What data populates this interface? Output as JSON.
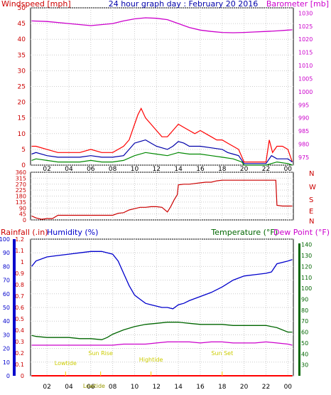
{
  "chart_data": [
    {
      "type": "line",
      "panel": "top",
      "title": "24 hour graph day : February 20 2016",
      "left_label": "Windspeed [mph]",
      "right_label": "Barometer [mb]",
      "left_ticks": [
        "0",
        "5",
        "10",
        "15",
        "20",
        "25",
        "30",
        "35",
        "40",
        "45",
        "50"
      ],
      "right_ticks": [
        "975",
        "980",
        "985",
        "990",
        "995",
        "1000",
        "1005",
        "1010",
        "1015",
        "1020",
        "1025",
        "1030"
      ],
      "x_ticks": [
        "02",
        "04",
        "06",
        "08",
        "10",
        "12",
        "14",
        "16",
        "18",
        "20",
        "22",
        "00"
      ],
      "x_range_hours": [
        0.5,
        24.5
      ],
      "ylim_left": [
        0,
        50
      ],
      "ylim_right": [
        972,
        1032
      ],
      "grid": true,
      "series": [
        {
          "name": "Windspeed",
          "role": "gust",
          "color": "#ff0000",
          "axis": "left",
          "x": [
            0.6,
            1,
            2,
            3,
            4,
            5,
            6,
            7,
            8,
            9,
            9.5,
            10,
            10.3,
            10.6,
            11,
            11.5,
            12,
            12.5,
            13,
            13.5,
            14,
            14.5,
            15,
            15.5,
            16,
            16.5,
            17,
            17.5,
            18,
            18.5,
            19,
            19.5,
            20,
            21,
            22,
            22.3,
            22.6,
            23,
            23.5,
            24,
            24.4
          ],
          "y": [
            6,
            6,
            5,
            4,
            4,
            4,
            5,
            4,
            4,
            6,
            8,
            13,
            16,
            18,
            15,
            13,
            11,
            9,
            9,
            11,
            13,
            12,
            11,
            10,
            11,
            10,
            9,
            8,
            8,
            7,
            6,
            5,
            1,
            1,
            1,
            8,
            4,
            6,
            6,
            5,
            1
          ]
        },
        {
          "name": "Windspeed",
          "role": "average",
          "color": "#0000aa",
          "axis": "left",
          "x": [
            0.6,
            1,
            2,
            3,
            4,
            5,
            6,
            7,
            8,
            9,
            9.5,
            10,
            10.5,
            11,
            11.5,
            12,
            12.5,
            13,
            13.5,
            14,
            14.5,
            15,
            16,
            17,
            18,
            18.5,
            19,
            19.5,
            20,
            21,
            22,
            22.5,
            23,
            24,
            24.4
          ],
          "y": [
            3.5,
            4,
            3,
            2.5,
            2.5,
            2.5,
            3,
            2.5,
            2.5,
            3,
            5,
            7,
            7.5,
            8,
            7,
            6,
            5.5,
            5,
            6,
            7.5,
            7,
            6,
            6,
            5.5,
            5,
            4,
            3.5,
            3,
            0.5,
            0.5,
            0.5,
            3,
            2,
            2,
            1
          ]
        },
        {
          "name": "Windspeed",
          "role": "minimum",
          "color": "#008800",
          "axis": "left",
          "x": [
            0.6,
            1,
            2,
            3,
            4,
            5,
            6,
            7,
            8,
            9,
            10,
            11,
            12,
            13,
            14,
            15,
            16,
            17,
            18,
            19,
            19.8,
            20,
            21,
            22,
            23,
            24,
            24.4
          ],
          "y": [
            1.5,
            2,
            1.5,
            1,
            1,
            1,
            1.5,
            1,
            1,
            1.5,
            3,
            4,
            3.5,
            3,
            4,
            3.5,
            3.5,
            3,
            2.5,
            2,
            1,
            0,
            0,
            0,
            1,
            0.5,
            0
          ]
        },
        {
          "name": "Barometer",
          "color": "#cc00cc",
          "axis": "right",
          "x": [
            0.6,
            2,
            4,
            6,
            8,
            9,
            10,
            11,
            12,
            13,
            14,
            15,
            16,
            17,
            18,
            19,
            20,
            21,
            22,
            23,
            24,
            24.4
          ],
          "y": [
            1027,
            1026.8,
            1026,
            1025.2,
            1026,
            1027,
            1027.8,
            1028.2,
            1028,
            1027.5,
            1026,
            1024.5,
            1023.5,
            1023,
            1022.6,
            1022.5,
            1022.6,
            1022.8,
            1023,
            1023.2,
            1023.5,
            1023.6
          ]
        }
      ]
    },
    {
      "type": "line",
      "panel": "middle",
      "left_ticks": [
        "0",
        "45",
        "90",
        "135",
        "180",
        "225",
        "270",
        "315",
        "360"
      ],
      "right_labels": [
        "N",
        "W",
        "S",
        "E",
        "N"
      ],
      "x_ticks": [
        "02",
        "04",
        "06",
        "08",
        "10",
        "12",
        "14",
        "16",
        "18",
        "20",
        "22",
        "00"
      ],
      "ylim": [
        0,
        360
      ],
      "grid": true,
      "series": [
        {
          "name": "Wind direction",
          "color": "#cc0000",
          "x": [
            0.6,
            1,
            1.5,
            2,
            2.5,
            3,
            4,
            5,
            6,
            7,
            8,
            8.5,
            9,
            9.5,
            10,
            10.5,
            11,
            11.5,
            12,
            12.5,
            13,
            13.3,
            13.6,
            13.9,
            14,
            14.5,
            15,
            15.5,
            16,
            16.5,
            17,
            17.5,
            18,
            19,
            20,
            21,
            22,
            22.5,
            22.9,
            23,
            23.5,
            24,
            24.4
          ],
          "y": [
            30,
            15,
            5,
            10,
            10,
            35,
            35,
            35,
            35,
            35,
            35,
            50,
            55,
            75,
            85,
            95,
            95,
            100,
            100,
            95,
            60,
            100,
            150,
            190,
            265,
            270,
            270,
            275,
            280,
            285,
            285,
            295,
            300,
            300,
            300,
            300,
            300,
            300,
            300,
            110,
            105,
            105,
            105
          ]
        }
      ]
    },
    {
      "type": "line",
      "panel": "bottom",
      "labels": {
        "rainfall": "Rainfall (.in)",
        "humidity": "Humidity (%)",
        "temperature": "Temperature (°F)",
        "dewpoint": "Dew Point (°F)"
      },
      "left_ticks_rain": [
        "0",
        "0.1",
        "0.2",
        "0.3",
        "0.4",
        "0.5",
        "0.6",
        "0.7",
        "0.8",
        "0.9",
        "1",
        "1.1",
        "1.2"
      ],
      "left_ticks_humidity": [
        "0",
        "10",
        "20",
        "30",
        "40",
        "50",
        "60",
        "70",
        "80",
        "90",
        "100"
      ],
      "right_ticks": [
        "30",
        "40",
        "50",
        "60",
        "70",
        "80",
        "90",
        "100",
        "110",
        "120",
        "130",
        "140"
      ],
      "x_ticks": [
        "02",
        "04",
        "06",
        "08",
        "10",
        "12",
        "14",
        "16",
        "18",
        "20",
        "22",
        "00"
      ],
      "ylim_humidity": [
        0,
        100
      ],
      "ylim_temperature": [
        20,
        145
      ],
      "grid": true,
      "annotations": [
        {
          "text": "Lowtide",
          "hour": 3.7
        },
        {
          "text": "Sun Rise",
          "hour": 6.9
        },
        {
          "text": "Hightide",
          "hour": 11.5
        },
        {
          "text": "Sun Set",
          "hour": 18.0
        },
        {
          "text": "Lowtide",
          "hour": 6.3
        }
      ],
      "series": [
        {
          "name": "Humidity",
          "color": "#0000cc",
          "axis": "humidity",
          "x": [
            0.6,
            1,
            2,
            3,
            4,
            5,
            6,
            7,
            8,
            8.5,
            9,
            9.5,
            10,
            10.5,
            11,
            11.5,
            12,
            12.5,
            13,
            13.5,
            14,
            14.5,
            15,
            16,
            17,
            18,
            19,
            20,
            21,
            22,
            22.5,
            23,
            24,
            24.4
          ],
          "y": [
            80,
            84,
            87,
            88,
            89,
            90,
            91,
            91,
            89,
            84,
            75,
            66,
            59,
            56,
            53,
            52,
            51,
            50,
            50,
            49,
            52,
            53,
            55,
            58,
            61,
            65,
            70,
            73,
            74,
            75,
            76,
            82,
            84,
            85
          ]
        },
        {
          "name": "Temperature",
          "color": "#006600",
          "axis": "temperature",
          "x": [
            0.6,
            1,
            2,
            3,
            4,
            5,
            6,
            7,
            7.5,
            8,
            9,
            10,
            11,
            12,
            13,
            14,
            15,
            16,
            17,
            18,
            19,
            20,
            21,
            22,
            23,
            24,
            24.4
          ],
          "y": [
            57,
            56,
            55,
            55,
            55,
            54,
            54,
            53,
            55,
            58,
            62,
            65,
            67,
            68,
            69,
            69,
            68,
            67,
            67,
            67,
            66,
            66,
            66,
            66,
            64,
            60,
            60
          ]
        },
        {
          "name": "Dew Point",
          "color": "#cc00cc",
          "axis": "temperature",
          "x": [
            0.6,
            2,
            4,
            6,
            7,
            8,
            9,
            10,
            11,
            12,
            13,
            14,
            15,
            16,
            17,
            18,
            19,
            20,
            21,
            22,
            23,
            24,
            24.4
          ],
          "y": [
            48,
            48,
            48,
            48,
            48,
            48,
            49,
            49,
            49,
            50,
            51,
            51,
            51,
            50,
            51,
            51,
            50,
            50,
            50,
            51,
            50,
            49,
            48
          ]
        },
        {
          "name": "Rainfall",
          "color": "#ff0000",
          "axis": "rain",
          "x": [
            0.6,
            24.4
          ],
          "y": [
            0,
            0
          ]
        }
      ]
    }
  ]
}
